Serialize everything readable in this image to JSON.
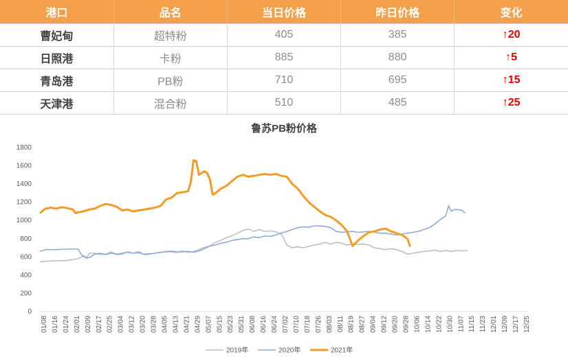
{
  "table": {
    "headers": [
      "港口",
      "品名",
      "当日价格",
      "昨日价格",
      "变化"
    ],
    "rows": [
      {
        "port": "曹妃甸",
        "product": "超特粉",
        "today": "405",
        "yesterday": "385",
        "change": "20",
        "arrow": "↑"
      },
      {
        "port": "日照港",
        "product": "卡粉",
        "today": "885",
        "yesterday": "880",
        "change": "5",
        "arrow": "↑"
      },
      {
        "port": "青岛港",
        "product": "PB粉",
        "today": "710",
        "yesterday": "695",
        "change": "15",
        "arrow": "↑"
      },
      {
        "port": "天津港",
        "product": "混合粉",
        "today": "510",
        "yesterday": "485",
        "change": "25",
        "arrow": "↑"
      }
    ]
  },
  "chart_data": {
    "type": "line",
    "title": "鲁苏PB粉价格",
    "xlabel": "",
    "ylabel": "",
    "ylim": [
      0,
      1800
    ],
    "yticks": [
      "0",
      "200",
      "400",
      "600",
      "800",
      "1000",
      "1200",
      "1400",
      "1600",
      "1800"
    ],
    "categories": [
      "01/08",
      "01/16",
      "01/24",
      "02/01",
      "02/09",
      "02/17",
      "02/25",
      "03/04",
      "03/12",
      "03/20",
      "03/28",
      "04/05",
      "04/13",
      "04/21",
      "04/29",
      "05/07",
      "05/15",
      "05/23",
      "05/31",
      "06/08",
      "06/16",
      "06/24",
      "07/02",
      "07/10",
      "07/18",
      "07/26",
      "08/03",
      "08/11",
      "08/19",
      "08/27",
      "09/04",
      "09/12",
      "09/20",
      "09/28",
      "10/06",
      "10/14",
      "10/22",
      "10/30",
      "11/07",
      "11/15",
      "11/23",
      "12/01",
      "12/09",
      "12/17",
      "12/25"
    ],
    "legend_position": "bottom",
    "grid": false,
    "series": [
      {
        "name": "2019年",
        "color": "#bfbfbf",
        "width": 1.6,
        "points": [
          [
            0,
            545
          ],
          [
            2,
            555
          ],
          [
            5,
            560
          ],
          [
            7,
            580
          ],
          [
            8,
            615
          ],
          [
            8.5,
            580
          ],
          [
            9,
            640
          ],
          [
            10,
            640
          ],
          [
            11,
            625
          ],
          [
            12,
            630
          ],
          [
            13,
            655
          ],
          [
            14,
            625
          ],
          [
            15,
            630
          ],
          [
            16,
            655
          ],
          [
            17,
            640
          ],
          [
            18,
            660
          ],
          [
            19,
            625
          ],
          [
            20,
            630
          ],
          [
            21,
            640
          ],
          [
            22,
            650
          ],
          [
            23,
            660
          ],
          [
            24,
            665
          ],
          [
            25,
            655
          ],
          [
            26,
            665
          ],
          [
            27,
            650
          ],
          [
            28,
            660
          ],
          [
            29,
            680
          ],
          [
            30,
            705
          ],
          [
            31,
            720
          ],
          [
            32,
            760
          ],
          [
            33,
            780
          ],
          [
            34,
            810
          ],
          [
            35,
            830
          ],
          [
            36,
            860
          ],
          [
            37,
            890
          ],
          [
            38,
            905
          ],
          [
            39,
            880
          ],
          [
            40,
            900
          ],
          [
            41,
            880
          ],
          [
            42,
            885
          ],
          [
            43,
            875
          ],
          [
            44,
            850
          ],
          [
            44.5,
            800
          ],
          [
            45,
            730
          ],
          [
            46,
            700
          ],
          [
            47,
            710
          ],
          [
            48,
            700
          ],
          [
            49,
            715
          ],
          [
            50,
            730
          ],
          [
            51,
            740
          ],
          [
            52,
            760
          ],
          [
            53,
            740
          ],
          [
            54,
            760
          ],
          [
            55,
            750
          ],
          [
            56,
            730
          ],
          [
            57,
            740
          ],
          [
            58,
            735
          ],
          [
            59,
            740
          ],
          [
            60,
            730
          ],
          [
            61,
            700
          ],
          [
            62,
            690
          ],
          [
            63,
            680
          ],
          [
            64,
            690
          ],
          [
            65,
            680
          ],
          [
            66,
            660
          ],
          [
            67,
            630
          ],
          [
            68,
            640
          ],
          [
            69,
            650
          ],
          [
            70,
            660
          ],
          [
            71,
            665
          ],
          [
            72,
            675
          ],
          [
            73,
            660
          ],
          [
            74,
            670
          ],
          [
            75,
            660
          ],
          [
            76,
            670
          ],
          [
            77,
            665
          ],
          [
            78,
            670
          ]
        ]
      },
      {
        "name": "2020年",
        "color": "#8eaadb",
        "width": 1.6,
        "points": [
          [
            0,
            660
          ],
          [
            1,
            680
          ],
          [
            3,
            680
          ],
          [
            5,
            685
          ],
          [
            7,
            685
          ],
          [
            7.5,
            630
          ],
          [
            8,
            600
          ],
          [
            9,
            590
          ],
          [
            10,
            630
          ],
          [
            11,
            640
          ],
          [
            12,
            625
          ],
          [
            13,
            640
          ],
          [
            14,
            630
          ],
          [
            15,
            640
          ],
          [
            16,
            650
          ],
          [
            17,
            640
          ],
          [
            18,
            645
          ],
          [
            19,
            630
          ],
          [
            20,
            635
          ],
          [
            21,
            640
          ],
          [
            22,
            650
          ],
          [
            23,
            655
          ],
          [
            24,
            655
          ],
          [
            25,
            650
          ],
          [
            26,
            655
          ],
          [
            27,
            660
          ],
          [
            28,
            650
          ],
          [
            29,
            665
          ],
          [
            30,
            690
          ],
          [
            31,
            720
          ],
          [
            32,
            730
          ],
          [
            33,
            750
          ],
          [
            34,
            760
          ],
          [
            35,
            780
          ],
          [
            36,
            790
          ],
          [
            37,
            800
          ],
          [
            38,
            800
          ],
          [
            39,
            820
          ],
          [
            40,
            810
          ],
          [
            41,
            830
          ],
          [
            42,
            825
          ],
          [
            43,
            840
          ],
          [
            44,
            860
          ],
          [
            45,
            880
          ],
          [
            46,
            900
          ],
          [
            47,
            920
          ],
          [
            48,
            930
          ],
          [
            49,
            925
          ],
          [
            50,
            940
          ],
          [
            51,
            940
          ],
          [
            52,
            935
          ],
          [
            53,
            920
          ],
          [
            54,
            880
          ],
          [
            55,
            870
          ],
          [
            56,
            875
          ],
          [
            57,
            880
          ],
          [
            58,
            870
          ],
          [
            59,
            875
          ],
          [
            60,
            880
          ],
          [
            61,
            870
          ],
          [
            62,
            860
          ],
          [
            63,
            860
          ],
          [
            64,
            850
          ],
          [
            65,
            840
          ],
          [
            66,
            850
          ],
          [
            67,
            860
          ],
          [
            68,
            870
          ],
          [
            69,
            880
          ],
          [
            70,
            900
          ],
          [
            71,
            920
          ],
          [
            72,
            960
          ],
          [
            73,
            1010
          ],
          [
            74,
            1050
          ],
          [
            74.5,
            1160
          ],
          [
            75,
            1100
          ],
          [
            75.5,
            1120
          ],
          [
            76,
            1120
          ],
          [
            77,
            1110
          ],
          [
            77.5,
            1080
          ]
        ]
      },
      {
        "name": "2021年",
        "color": "#f59a23",
        "width": 3,
        "points": [
          [
            0,
            1080
          ],
          [
            1,
            1130
          ],
          [
            2,
            1140
          ],
          [
            3,
            1130
          ],
          [
            4,
            1145
          ],
          [
            5,
            1135
          ],
          [
            6,
            1120
          ],
          [
            6.5,
            1080
          ],
          [
            7,
            1090
          ],
          [
            8,
            1100
          ],
          [
            9,
            1120
          ],
          [
            10,
            1130
          ],
          [
            11,
            1160
          ],
          [
            12,
            1180
          ],
          [
            13,
            1170
          ],
          [
            14,
            1150
          ],
          [
            15,
            1110
          ],
          [
            16,
            1120
          ],
          [
            17,
            1100
          ],
          [
            18,
            1110
          ],
          [
            19,
            1120
          ],
          [
            20,
            1130
          ],
          [
            21,
            1140
          ],
          [
            22,
            1160
          ],
          [
            23,
            1230
          ],
          [
            24,
            1250
          ],
          [
            25,
            1300
          ],
          [
            26,
            1310
          ],
          [
            27,
            1320
          ],
          [
            27.5,
            1420
          ],
          [
            28,
            1660
          ],
          [
            28.5,
            1650
          ],
          [
            29,
            1500
          ],
          [
            30,
            1540
          ],
          [
            30.5,
            1520
          ],
          [
            31,
            1450
          ],
          [
            31.5,
            1280
          ],
          [
            32,
            1300
          ],
          [
            33,
            1350
          ],
          [
            34,
            1380
          ],
          [
            35,
            1430
          ],
          [
            36,
            1480
          ],
          [
            37,
            1500
          ],
          [
            38,
            1480
          ],
          [
            39,
            1490
          ],
          [
            40,
            1500
          ],
          [
            41,
            1510
          ],
          [
            42,
            1500
          ],
          [
            43,
            1510
          ],
          [
            44,
            1490
          ],
          [
            45,
            1480
          ],
          [
            46,
            1400
          ],
          [
            47,
            1350
          ],
          [
            48,
            1270
          ],
          [
            49,
            1200
          ],
          [
            50,
            1150
          ],
          [
            51,
            1100
          ],
          [
            51.5,
            1080
          ],
          [
            52,
            1060
          ],
          [
            53,
            1040
          ],
          [
            54,
            1000
          ],
          [
            55,
            950
          ],
          [
            56,
            880
          ],
          [
            57,
            720
          ],
          [
            58,
            780
          ],
          [
            59,
            830
          ],
          [
            60,
            870
          ],
          [
            61,
            880
          ],
          [
            62,
            900
          ],
          [
            63,
            910
          ],
          [
            64,
            880
          ],
          [
            65,
            860
          ],
          [
            66,
            840
          ],
          [
            67,
            800
          ],
          [
            67.5,
            710
          ]
        ]
      }
    ]
  }
}
